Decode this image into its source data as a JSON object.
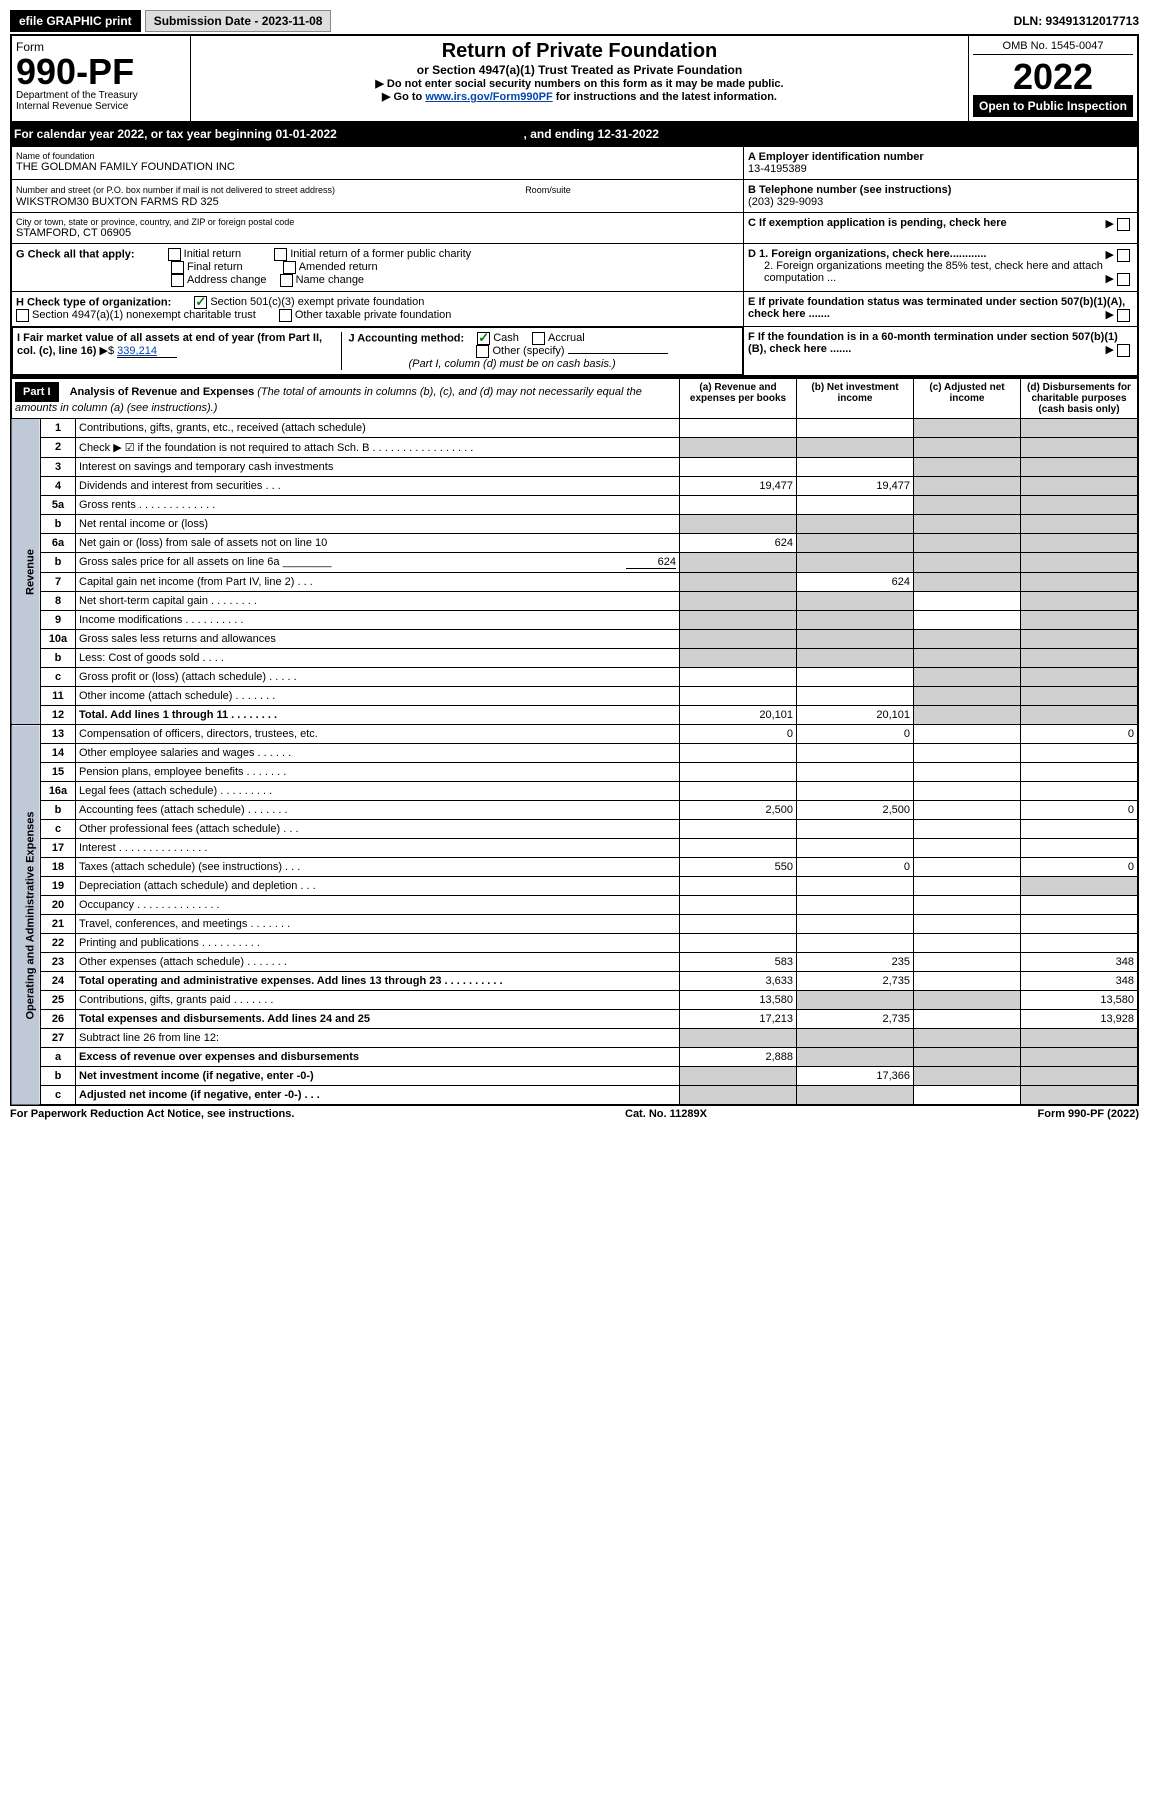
{
  "topbar": {
    "efile": "efile GRAPHIC print",
    "subdate_lbl": "Submission Date - 2023-11-08",
    "dln": "DLN: 93491312017713"
  },
  "hdr": {
    "form": "Form",
    "formno": "990-PF",
    "dept": "Department of the Treasury",
    "irs": "Internal Revenue Service",
    "title": "Return of Private Foundation",
    "sub": "or Section 4947(a)(1) Trust Treated as Private Foundation",
    "note1": "▶ Do not enter social security numbers on this form as it may be made public.",
    "note2": "▶ Go to ",
    "link": "www.irs.gov/Form990PF",
    "note3": " for instructions and the latest information.",
    "omb": "OMB No. 1545-0047",
    "year": "2022",
    "open": "Open to Public Inspection"
  },
  "cal": {
    "pre": "For calendar year 2022, or tax year beginning ",
    "begin": "01-01-2022",
    "mid": " , and ending ",
    "end": "12-31-2022"
  },
  "id": {
    "name_lbl": "Name of foundation",
    "name": "THE GOLDMAN FAMILY FOUNDATION INC",
    "addr_lbl": "Number and street (or P.O. box number if mail is not delivered to street address)",
    "addr": "WIKSTROM30 BUXTON FARMS RD 325",
    "room": "Room/suite",
    "city_lbl": "City or town, state or province, country, and ZIP or foreign postal code",
    "city": "STAMFORD, CT  06905",
    "ein_lbl": "A Employer identification number",
    "ein": "13-4195389",
    "tel_lbl": "B Telephone number (see instructions)",
    "tel": "(203) 329-9093",
    "c": "C If exemption application is pending, check here",
    "d1": "D 1. Foreign organizations, check here............",
    "d2": "2. Foreign organizations meeting the 85% test, check here and attach computation ...",
    "e": "E If private foundation status was terminated under section 507(b)(1)(A), check here .......",
    "f": "F If the foundation is in a 60-month termination under section 507(b)(1)(B), check here ......."
  },
  "g": {
    "lbl": "G Check all that apply:",
    "i1": "Initial return",
    "i2": "Initial return of a former public charity",
    "i3": "Final return",
    "i4": "Amended return",
    "i5": "Address change",
    "i6": "Name change"
  },
  "h": {
    "lbl": "H Check type of organization:",
    "o1": "Section 501(c)(3) exempt private foundation",
    "o2": "Section 4947(a)(1) nonexempt charitable trust",
    "o3": "Other taxable private foundation"
  },
  "i": {
    "lbl": "I Fair market value of all assets at end of year (from Part II, col. (c), line 16) ",
    "arrow": "▶$",
    "val": "339,214"
  },
  "j": {
    "lbl": "J Accounting method:",
    "cash": "Cash",
    "accr": "Accrual",
    "other": "Other (specify)",
    "note": "(Part I, column (d) must be on cash basis.)"
  },
  "p1": {
    "title": "Part I",
    "head": "Analysis of Revenue and Expenses ",
    "sub": "(The total of amounts in columns (b), (c), and (d) may not necessarily equal the amounts in column (a) (see instructions).)",
    "cols": {
      "a": "(a) Revenue and expenses per books",
      "b": "(b) Net investment income",
      "c": "(c) Adjusted net income",
      "d": "(d) Disbursements for charitable purposes (cash basis only)"
    },
    "side_rev": "Revenue",
    "side_exp": "Operating and Administrative Expenses",
    "rows": [
      {
        "n": "1",
        "d": "Contributions, gifts, grants, etc., received (attach schedule)"
      },
      {
        "n": "2",
        "d": "Check ▶ ☑ if the foundation is not required to attach Sch. B   .  .  .  .  .  .  .  .  .  .  .  .  .  .  .  .  ."
      },
      {
        "n": "3",
        "d": "Interest on savings and temporary cash investments"
      },
      {
        "n": "4",
        "d": "Dividends and interest from securities   .  .  .",
        "a": "19,477",
        "b": "19,477"
      },
      {
        "n": "5a",
        "d": "Gross rents   .  .  .  .  .  .  .  .  .  .  .  .  ."
      },
      {
        "n": "b",
        "d": "Net rental income or (loss)  "
      },
      {
        "n": "6a",
        "d": "Net gain or (loss) from sale of assets not on line 10",
        "a": "624"
      },
      {
        "n": "b",
        "d": "Gross sales price for all assets on line 6a ________",
        "inline": "624"
      },
      {
        "n": "7",
        "d": "Capital gain net income (from Part IV, line 2)  .  .  .",
        "b": "624"
      },
      {
        "n": "8",
        "d": "Net short-term capital gain  .  .  .  .  .  .  .  ."
      },
      {
        "n": "9",
        "d": "Income modifications  .  .  .  .  .  .  .  .  .  ."
      },
      {
        "n": "10a",
        "d": "Gross sales less returns and allowances"
      },
      {
        "n": "b",
        "d": "Less: Cost of goods sold   .  .  .  ."
      },
      {
        "n": "c",
        "d": "Gross profit or (loss) (attach schedule)   .  .  .  .  ."
      },
      {
        "n": "11",
        "d": "Other income (attach schedule)   .  .  .  .  .  .  ."
      },
      {
        "n": "12",
        "d": "Total. Add lines 1 through 11   .  .  .  .  .  .  .  .",
        "a": "20,101",
        "b": "20,101",
        "bold": true
      },
      {
        "n": "13",
        "d": "Compensation of officers, directors, trustees, etc.",
        "a": "0",
        "b": "0",
        "dd": "0"
      },
      {
        "n": "14",
        "d": "Other employee salaries and wages  .  .  .  .  .  ."
      },
      {
        "n": "15",
        "d": "Pension plans, employee benefits  .  .  .  .  .  .  ."
      },
      {
        "n": "16a",
        "d": "Legal fees (attach schedule)  .  .  .  .  .  .  .  .  ."
      },
      {
        "n": "b",
        "d": "Accounting fees (attach schedule)  .  .  .  .  .  .  .",
        "a": "2,500",
        "b": "2,500",
        "dd": "0"
      },
      {
        "n": "c",
        "d": "Other professional fees (attach schedule)   .  .  ."
      },
      {
        "n": "17",
        "d": "Interest  .  .  .  .  .  .  .  .  .  .  .  .  .  .  ."
      },
      {
        "n": "18",
        "d": "Taxes (attach schedule) (see instructions)   .  .  .",
        "a": "550",
        "b": "0",
        "dd": "0"
      },
      {
        "n": "19",
        "d": "Depreciation (attach schedule) and depletion   .  .  ."
      },
      {
        "n": "20",
        "d": "Occupancy  .  .  .  .  .  .  .  .  .  .  .  .  .  ."
      },
      {
        "n": "21",
        "d": "Travel, conferences, and meetings  .  .  .  .  .  .  ."
      },
      {
        "n": "22",
        "d": "Printing and publications  .  .  .  .  .  .  .  .  .  ."
      },
      {
        "n": "23",
        "d": "Other expenses (attach schedule)  .  .  .  .  .  .  .",
        "a": "583",
        "b": "235",
        "dd": "348"
      },
      {
        "n": "24",
        "d": "Total operating and administrative expenses. Add lines 13 through 23   .  .  .  .  .  .  .  .  .  .",
        "a": "3,633",
        "b": "2,735",
        "dd": "348",
        "bold": true
      },
      {
        "n": "25",
        "d": "Contributions, gifts, grants paid   .  .  .  .  .  .  .",
        "a": "13,580",
        "dd": "13,580"
      },
      {
        "n": "26",
        "d": "Total expenses and disbursements. Add lines 24 and 25",
        "a": "17,213",
        "b": "2,735",
        "dd": "13,928",
        "bold": true
      },
      {
        "n": "27",
        "d": "Subtract line 26 from line 12:"
      },
      {
        "n": "a",
        "d": "Excess of revenue over expenses and disbursements",
        "a": "2,888",
        "bold": true
      },
      {
        "n": "b",
        "d": "Net investment income (if negative, enter -0-)",
        "b": "17,366",
        "bold": true
      },
      {
        "n": "c",
        "d": "Adjusted net income (if negative, enter -0-)  .  .  .",
        "bold": true
      }
    ]
  },
  "foot": {
    "l": "For Paperwork Reduction Act Notice, see instructions.",
    "c": "Cat. No. 11289X",
    "r": "Form 990-PF (2022)"
  }
}
